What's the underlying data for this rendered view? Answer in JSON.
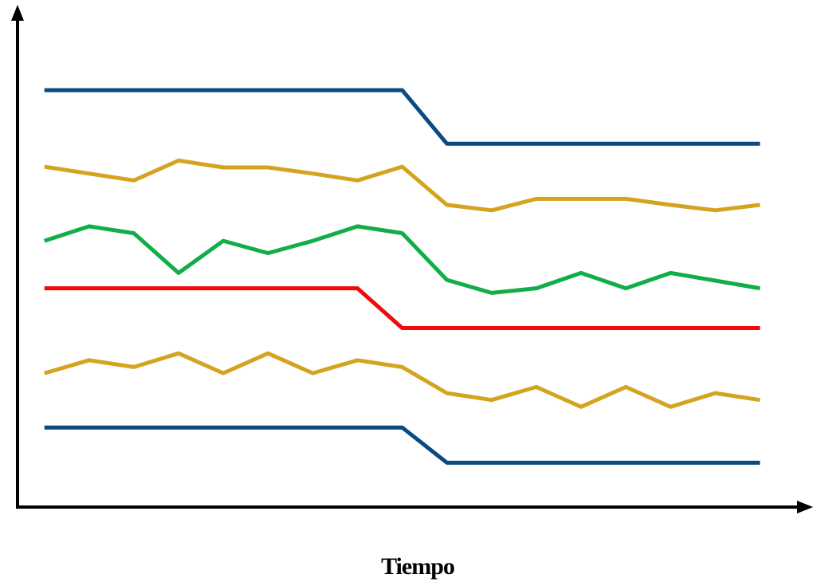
{
  "chart_data": {
    "type": "line",
    "title": "",
    "xlabel": "Tiempo",
    "ylabel": "",
    "grid": false,
    "legend": "none",
    "x": [
      1,
      2,
      3,
      4,
      5,
      6,
      7,
      8,
      9,
      10,
      11,
      12,
      13,
      14,
      15,
      16,
      17
    ],
    "xlim": [
      0.4,
      17.9
    ],
    "ylim": [
      0,
      640
    ],
    "axis_color": "#000000",
    "series": [
      {
        "color": "#0a4a80",
        "values": [
          545,
          545,
          545,
          545,
          545,
          545,
          545,
          545,
          545,
          475,
          475,
          475,
          475,
          475,
          475,
          475,
          475
        ]
      },
      {
        "color": "#d4a320",
        "values": [
          445,
          436,
          427,
          453,
          444,
          444,
          436,
          427,
          445,
          395,
          388,
          403,
          403,
          403,
          395,
          388,
          395
        ]
      },
      {
        "color": "#11ad49",
        "values": [
          348,
          367,
          358,
          306,
          348,
          332,
          348,
          367,
          358,
          297,
          280,
          286,
          306,
          286,
          306,
          296,
          286
        ]
      },
      {
        "color": "#f20a0a",
        "values": [
          286,
          286,
          286,
          286,
          286,
          286,
          286,
          286,
          234,
          234,
          234,
          234,
          234,
          234,
          234,
          234,
          234
        ]
      },
      {
        "color": "#d4a320",
        "values": [
          175,
          192,
          183,
          201,
          175,
          201,
          175,
          192,
          183,
          149,
          140,
          157,
          131,
          157,
          131,
          149,
          140
        ]
      },
      {
        "color": "#0a4a80",
        "values": [
          104,
          104,
          104,
          104,
          104,
          104,
          104,
          104,
          104,
          58,
          58,
          58,
          58,
          58,
          58,
          58,
          58
        ]
      }
    ]
  }
}
